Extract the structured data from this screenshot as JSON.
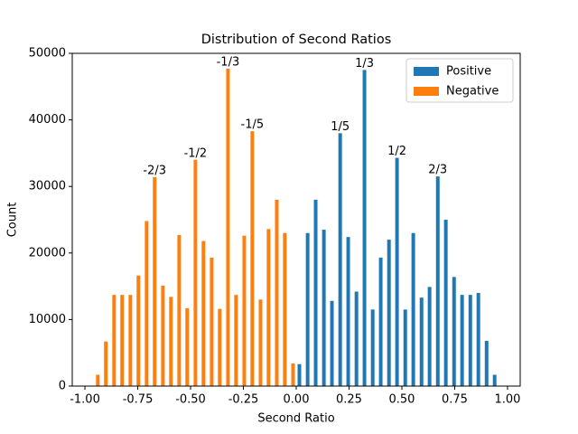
{
  "chart_data": {
    "type": "bar",
    "title": "Distribution of Second Ratios",
    "xlabel": "Second Ratio",
    "ylabel": "Count",
    "xlim": [
      -1.06,
      1.06
    ],
    "ylim": [
      0,
      50000
    ],
    "xticks": [
      {
        "value": -1,
        "label": "-1.00"
      },
      {
        "value": -0.75,
        "label": "-0.75"
      },
      {
        "value": -0.5,
        "label": "-0.50"
      },
      {
        "value": -0.25,
        "label": "-0.25"
      },
      {
        "value": 0,
        "label": "0.00"
      },
      {
        "value": 0.25,
        "label": "0.25"
      },
      {
        "value": 0.5,
        "label": "0.50"
      },
      {
        "value": 0.75,
        "label": "0.75"
      },
      {
        "value": 1,
        "label": "1.00"
      }
    ],
    "yticks": [
      0,
      10000,
      20000,
      30000,
      40000,
      50000
    ],
    "bar_width": 0.017,
    "legend": "upper right",
    "grid": false,
    "series": [
      {
        "name": "Positive",
        "color": "#1f77b4",
        "x": [
          0.015,
          0.054,
          0.092,
          0.131,
          0.169,
          0.208,
          0.246,
          0.285,
          0.323,
          0.362,
          0.4,
          0.439,
          0.477,
          0.516,
          0.554,
          0.593,
          0.631,
          0.67,
          0.708,
          0.747,
          0.785,
          0.824,
          0.862,
          0.901,
          0.939
        ],
        "values": [
          3300,
          23000,
          28000,
          23500,
          12800,
          38000,
          22400,
          14200,
          47500,
          11500,
          19300,
          22000,
          34300,
          11500,
          23000,
          13300,
          14900,
          31500,
          25000,
          16400,
          13700,
          13700,
          14000,
          6800,
          1700
        ]
      },
      {
        "name": "Negative",
        "color": "#ff7f0e",
        "x": [
          -0.939,
          -0.901,
          -0.862,
          -0.824,
          -0.785,
          -0.747,
          -0.708,
          -0.67,
          -0.631,
          -0.593,
          -0.554,
          -0.516,
          -0.477,
          -0.439,
          -0.4,
          -0.362,
          -0.323,
          -0.285,
          -0.246,
          -0.208,
          -0.169,
          -0.131,
          -0.092,
          -0.054,
          -0.015
        ],
        "values": [
          1700,
          6700,
          13700,
          13700,
          13700,
          16600,
          24800,
          31400,
          15100,
          13400,
          22700,
          11700,
          34000,
          21800,
          19300,
          11600,
          47700,
          13700,
          22600,
          38300,
          13000,
          23600,
          28000,
          23000,
          3400
        ]
      }
    ],
    "annotations": [
      {
        "text": "-2/3",
        "x": -0.67,
        "y": 31400
      },
      {
        "text": "-1/2",
        "x": -0.477,
        "y": 34000
      },
      {
        "text": "-1/3",
        "x": -0.323,
        "y": 47700
      },
      {
        "text": "-1/5",
        "x": -0.208,
        "y": 38300
      },
      {
        "text": "1/5",
        "x": 0.208,
        "y": 38000
      },
      {
        "text": "1/3",
        "x": 0.323,
        "y": 47500
      },
      {
        "text": "1/2",
        "x": 0.477,
        "y": 34300
      },
      {
        "text": "2/3",
        "x": 0.67,
        "y": 31500
      }
    ]
  }
}
